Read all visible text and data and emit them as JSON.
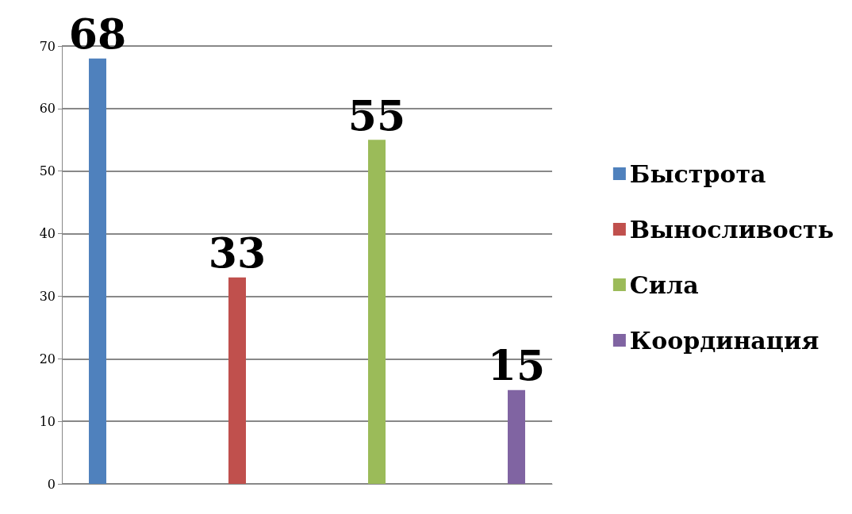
{
  "chart_data": {
    "type": "bar",
    "categories": [
      null
    ],
    "series": [
      {
        "name": "Быстрота",
        "color": "#4f81bd",
        "values": [
          68
        ]
      },
      {
        "name": "Выносливость",
        "color": "#c0504d",
        "values": [
          33
        ]
      },
      {
        "name": "Сила",
        "color": "#9bbb59",
        "values": [
          55
        ]
      },
      {
        "name": "Координация",
        "color": "#8064a2",
        "values": [
          15
        ]
      }
    ],
    "ylim": [
      0,
      70
    ],
    "yticks": [
      0,
      10,
      20,
      30,
      40,
      50,
      60,
      70
    ],
    "grid": "y",
    "legend": "right",
    "data_labels": true
  }
}
